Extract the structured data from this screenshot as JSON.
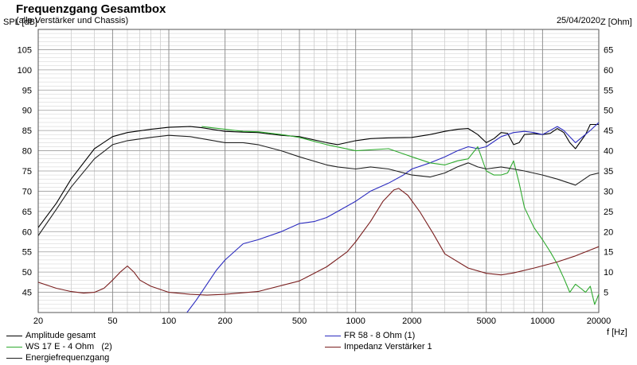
{
  "header": {
    "title": "Frequenzgang Gesamtbox",
    "subtitle": "(alle Verstärker und Chassis)",
    "date": "25/04/2020"
  },
  "chart_data": {
    "type": "line",
    "title": "Frequenzgang Gesamtbox",
    "subtitle": "(alle Verstärker und Chassis)",
    "xlabel": "f [Hz]",
    "ylabel": "SPL [dB]",
    "y2label": "Z [Ohm]",
    "x_scale": "log",
    "xlim": [
      20,
      20000
    ],
    "ylim": [
      40,
      110
    ],
    "y2lim": [
      0,
      70
    ],
    "grid": true,
    "legend_placement": "bottom",
    "x_ticks": [
      20,
      50,
      100,
      200,
      500,
      1000,
      2000,
      5000,
      10000,
      20000
    ],
    "x_tick_labels": [
      "20",
      "50",
      "100",
      "200",
      "500",
      "1000",
      "2000",
      "5000",
      "10000",
      "20000"
    ],
    "y_ticks": [
      45,
      50,
      55,
      60,
      65,
      70,
      75,
      80,
      85,
      90,
      95,
      100,
      105
    ],
    "y_tick_labels": [
      "45",
      "50",
      "55",
      "60",
      "65",
      "70",
      "75",
      "80",
      "85",
      "90",
      "95",
      "100",
      "105"
    ],
    "y2_ticks": [
      5,
      10,
      15,
      20,
      25,
      30,
      35,
      40,
      45,
      50,
      55,
      60,
      65
    ],
    "y2_tick_labels": [
      "5",
      "10",
      "15",
      "20",
      "25",
      "30",
      "35",
      "40",
      "45",
      "50",
      "55",
      "60",
      "65"
    ],
    "series": [
      {
        "name": "Amplitude gesamt",
        "color": "#000000",
        "axis": "left",
        "x": [
          20,
          25,
          30,
          40,
          50,
          60,
          80,
          100,
          130,
          150,
          200,
          250,
          300,
          400,
          500,
          700,
          800,
          1000,
          1200,
          1500,
          2000,
          2500,
          3000,
          3500,
          4000,
          4500,
          5000,
          5500,
          6000,
          6500,
          7000,
          7500,
          8000,
          9000,
          10000,
          11000,
          12000,
          13000,
          14000,
          15000,
          17000,
          18000,
          20000
        ],
        "y": [
          61,
          67,
          73,
          80.5,
          83.5,
          84.5,
          85.3,
          85.8,
          86,
          85.7,
          84.8,
          84.6,
          84.5,
          83.8,
          83.5,
          82,
          81.5,
          82.5,
          83,
          83.2,
          83.3,
          84,
          84.8,
          85.3,
          85.5,
          84,
          82,
          83,
          84.5,
          84.3,
          81.5,
          82,
          84,
          84.2,
          84,
          84.3,
          85.5,
          84.5,
          82,
          80.5,
          84,
          86.5,
          86.5
        ]
      },
      {
        "name": "FR 58 - 8 Ohm (1)",
        "color": "#2b2bbf",
        "axis": "left",
        "x": [
          125,
          140,
          160,
          180,
          200,
          250,
          300,
          400,
          500,
          600,
          700,
          800,
          1000,
          1200,
          1500,
          1800,
          2000,
          2500,
          3000,
          3500,
          4000,
          4500,
          5000,
          6000,
          7000,
          8000,
          9000,
          10000,
          12000,
          13000,
          15000,
          18000,
          20000
        ],
        "y": [
          40,
          43,
          47,
          50.5,
          53,
          57,
          58,
          60,
          62,
          62.5,
          63.5,
          65,
          67.5,
          70,
          72,
          74,
          75.5,
          77,
          78.5,
          80,
          81,
          80.5,
          81,
          83.5,
          84.5,
          84.8,
          84.5,
          84,
          86,
          85,
          82,
          85,
          87
        ]
      },
      {
        "name": "WS 17 E - 4 Ohm   (2)",
        "color": "#2faa2f",
        "axis": "left",
        "x": [
          150,
          200,
          250,
          300,
          400,
          500,
          700,
          1000,
          1500,
          2000,
          2500,
          3000,
          3500,
          4000,
          4500,
          5000,
          5500,
          6000,
          6500,
          7000,
          7500,
          8000,
          9000,
          10000,
          11000,
          12000,
          13000,
          14000,
          15000,
          16000,
          17000,
          18000,
          19000,
          20000
        ],
        "y": [
          86,
          85.3,
          84.8,
          84.7,
          84,
          83.3,
          81.5,
          80,
          80.5,
          78.5,
          77,
          76.5,
          77.5,
          78,
          81,
          75,
          74,
          74,
          74.5,
          77.5,
          72,
          66,
          61,
          58,
          55,
          52,
          48.5,
          45,
          47,
          46,
          45,
          46.5,
          42,
          44.5
        ]
      },
      {
        "name": "Energiefrequenzgang",
        "color": "#202020",
        "axis": "left",
        "x": [
          20,
          25,
          30,
          40,
          50,
          60,
          80,
          100,
          130,
          150,
          200,
          250,
          300,
          400,
          500,
          700,
          800,
          1000,
          1200,
          1500,
          2000,
          2500,
          3000,
          3500,
          4000,
          4500,
          5000,
          6000,
          7000,
          8000,
          10000,
          12000,
          15000,
          18000,
          20000
        ],
        "y": [
          59,
          65.5,
          71,
          78,
          81.5,
          82.5,
          83.3,
          83.8,
          83.5,
          83,
          82,
          82,
          81.5,
          80,
          78.5,
          76.5,
          76,
          75.5,
          76,
          75.5,
          74,
          73.5,
          74.5,
          76,
          77,
          76,
          75.5,
          76,
          75.5,
          75,
          74,
          73,
          71.5,
          74,
          74.5
        ]
      },
      {
        "name": "Impedanz Verstärker 1",
        "color": "#7a1f1f",
        "axis": "right",
        "x": [
          20,
          25,
          30,
          35,
          40,
          45,
          50,
          55,
          60,
          65,
          70,
          80,
          100,
          130,
          160,
          200,
          300,
          500,
          700,
          900,
          1000,
          1200,
          1400,
          1600,
          1700,
          1900,
          2200,
          2600,
          3000,
          4000,
          5000,
          6000,
          7000,
          9000,
          12000,
          15000,
          20000
        ],
        "y": [
          7.5,
          6,
          5.2,
          4.8,
          5,
          6,
          8,
          10,
          11.5,
          10,
          8,
          6.5,
          5,
          4.5,
          4.3,
          4.5,
          5.2,
          7.8,
          11.3,
          15,
          17.5,
          22.5,
          27.5,
          30.3,
          30.7,
          29,
          25,
          19.5,
          14.5,
          11,
          9.7,
          9.3,
          9.8,
          11,
          12.5,
          14,
          16.3
        ]
      }
    ]
  },
  "legend": [
    {
      "label": "Amplitude gesamt",
      "color": "#000000"
    },
    {
      "label": "FR 58 - 8 Ohm (1)",
      "color": "#2b2bbf"
    },
    {
      "label": "WS 17 E - 4 Ohm   (2)",
      "color": "#2faa2f"
    },
    {
      "label": "Impedanz Verstärker 1",
      "color": "#7a1f1f"
    },
    {
      "label": "Energiefrequenzgang",
      "color": "#202020"
    }
  ]
}
